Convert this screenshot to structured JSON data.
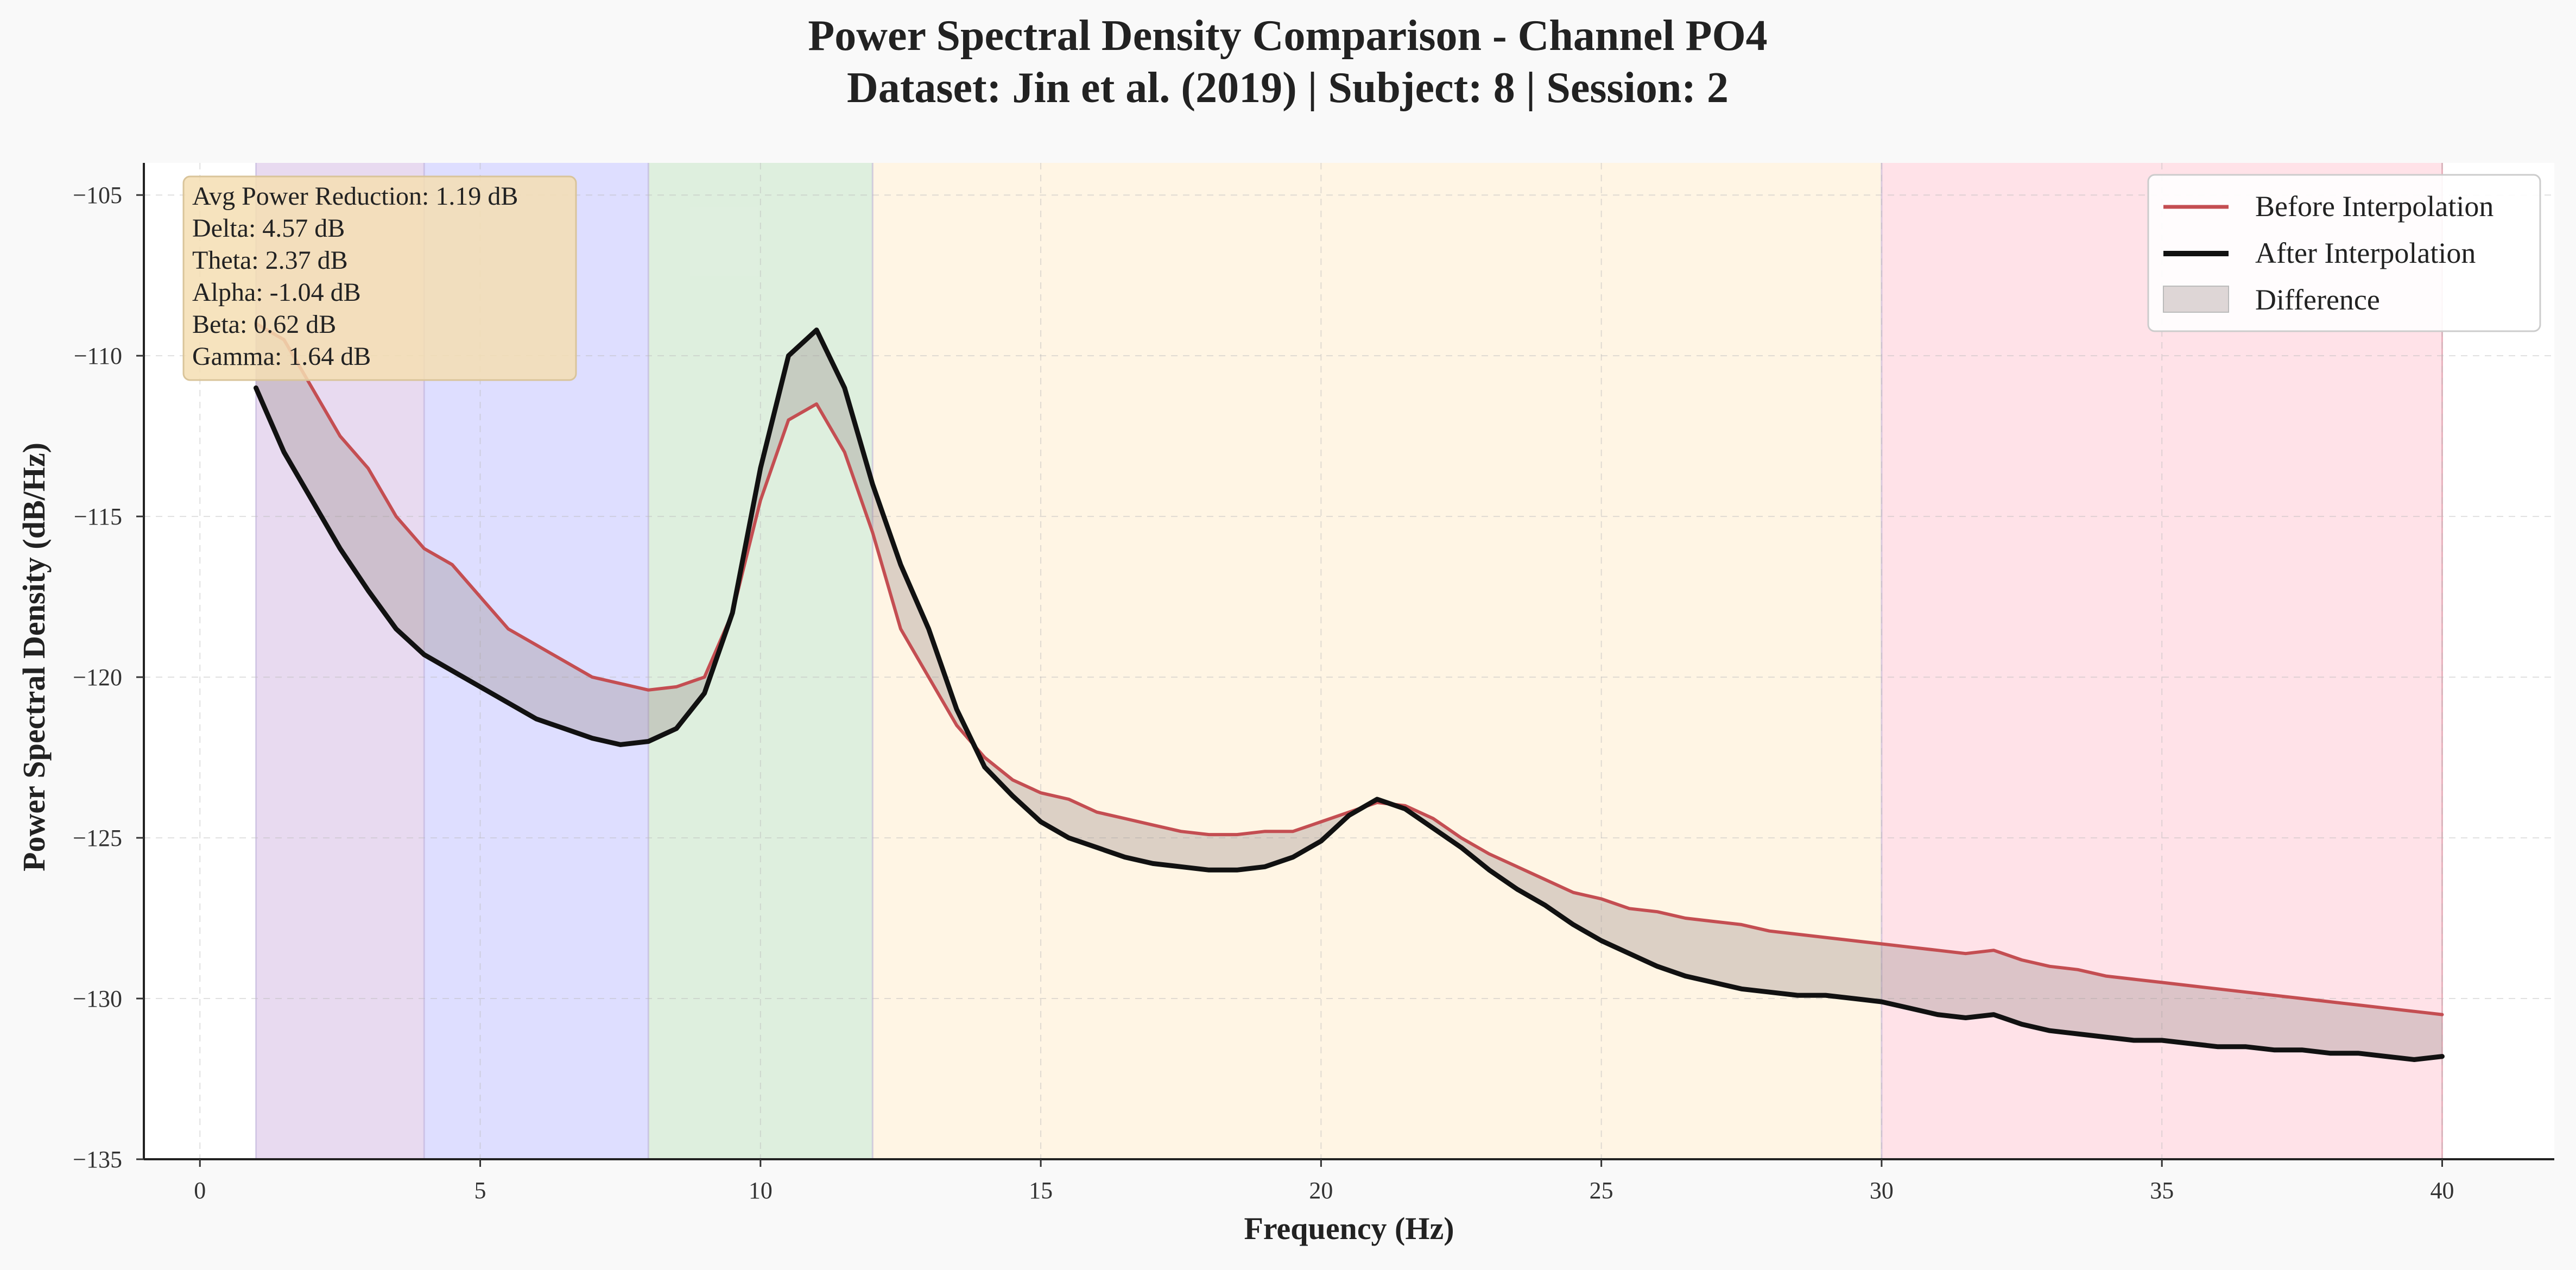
{
  "chart_data": {
    "type": "line",
    "title": "Power Spectral Density Comparison - Channel PO4",
    "subtitle": "Dataset: Jin et al. (2019) | Subject: 8 | Session: 2",
    "xlabel": "Frequency (Hz)",
    "ylabel": "Power Spectral Density (dB/Hz)",
    "xlim": [
      -1,
      42
    ],
    "ylim": [
      -135,
      -104
    ],
    "xticks": [
      "0",
      "5",
      "10",
      "15",
      "20",
      "25",
      "30",
      "35",
      "40"
    ],
    "yticks": [
      "−105",
      "−110",
      "−115",
      "−120",
      "−125",
      "−130",
      "−135"
    ],
    "grid": true,
    "legend_position": "top-right",
    "legend": [
      "Before Interpolation",
      "After Interpolation",
      "Difference"
    ],
    "bands": [
      {
        "name": "Delta",
        "range": [
          1,
          4
        ],
        "color": "#dcc6e8"
      },
      {
        "name": "Theta",
        "range": [
          4,
          8
        ],
        "color": "#ccccff"
      },
      {
        "name": "Alpha",
        "range": [
          8,
          12
        ],
        "color": "#cde6cd"
      },
      {
        "name": "Beta",
        "range": [
          12,
          30
        ],
        "color": "#ffefd5"
      },
      {
        "name": "Gamma",
        "range": [
          30,
          40
        ],
        "color": "#ffd3db"
      }
    ],
    "stats": [
      "Avg Power Reduction: 1.19 dB",
      "Delta: 4.57 dB",
      "Theta: 2.37 dB",
      "Alpha: -1.04 dB",
      "Beta: 0.62 dB",
      "Gamma: 1.64 dB"
    ],
    "series": [
      {
        "name": "Before Interpolation",
        "color": "#c44e52",
        "x": [
          1,
          1.5,
          2,
          2.5,
          3,
          3.5,
          4,
          4.5,
          5,
          5.5,
          6,
          6.5,
          7,
          7.5,
          8,
          8.5,
          9,
          9.5,
          10,
          10.5,
          11,
          11.5,
          12,
          12.5,
          13,
          13.5,
          14,
          14.5,
          15,
          15.5,
          16,
          16.5,
          17,
          17.5,
          18,
          18.5,
          19,
          19.5,
          20,
          20.5,
          21,
          21.5,
          22,
          22.5,
          23,
          23.5,
          24,
          24.5,
          25,
          25.5,
          26,
          26.5,
          27,
          27.5,
          28,
          28.5,
          29,
          29.5,
          30,
          30.5,
          31,
          31.5,
          32,
          32.5,
          33,
          33.5,
          34,
          34.5,
          35,
          35.5,
          36,
          36.5,
          37,
          37.5,
          38,
          38.5,
          39,
          39.5,
          40
        ],
        "y": [
          -109,
          -109.5,
          -111,
          -112.5,
          -113.5,
          -115,
          -116,
          -116.5,
          -117.5,
          -118.5,
          -119,
          -119.5,
          -120,
          -120.2,
          -120.4,
          -120.3,
          -120,
          -118,
          -114.5,
          -112,
          -111.5,
          -113,
          -115.5,
          -118.5,
          -120,
          -121.5,
          -122.5,
          -123.2,
          -123.6,
          -123.8,
          -124.2,
          -124.4,
          -124.6,
          -124.8,
          -124.9,
          -124.9,
          -124.8,
          -124.8,
          -124.5,
          -124.2,
          -123.9,
          -124,
          -124.4,
          -125,
          -125.5,
          -125.9,
          -126.3,
          -126.7,
          -126.9,
          -127.2,
          -127.3,
          -127.5,
          -127.6,
          -127.7,
          -127.9,
          -128,
          -128.1,
          -128.2,
          -128.3,
          -128.4,
          -128.5,
          -128.6,
          -128.5,
          -128.8,
          -129,
          -129.1,
          -129.3,
          -129.4,
          -129.5,
          -129.6,
          -129.7,
          -129.8,
          -129.9,
          -130,
          -130.1,
          -130.2,
          -130.3,
          -130.4,
          -130.5
        ]
      },
      {
        "name": "After Interpolation",
        "color": "#111111",
        "x": [
          1,
          1.5,
          2,
          2.5,
          3,
          3.5,
          4,
          4.5,
          5,
          5.5,
          6,
          6.5,
          7,
          7.5,
          8,
          8.5,
          9,
          9.5,
          10,
          10.5,
          11,
          11.5,
          12,
          12.5,
          13,
          13.5,
          14,
          14.5,
          15,
          15.5,
          16,
          16.5,
          17,
          17.5,
          18,
          18.5,
          19,
          19.5,
          20,
          20.5,
          21,
          21.5,
          22,
          22.5,
          23,
          23.5,
          24,
          24.5,
          25,
          25.5,
          26,
          26.5,
          27,
          27.5,
          28,
          28.5,
          29,
          29.5,
          30,
          30.5,
          31,
          31.5,
          32,
          32.5,
          33,
          33.5,
          34,
          34.5,
          35,
          35.5,
          36,
          36.5,
          37,
          37.5,
          38,
          38.5,
          39,
          39.5,
          40
        ],
        "y": [
          -111,
          -113,
          -114.5,
          -116,
          -117.3,
          -118.5,
          -119.3,
          -119.8,
          -120.3,
          -120.8,
          -121.3,
          -121.6,
          -121.9,
          -122.1,
          -122,
          -121.6,
          -120.5,
          -118,
          -113.5,
          -110,
          -109.2,
          -111,
          -114,
          -116.5,
          -118.5,
          -121,
          -122.8,
          -123.7,
          -124.5,
          -125,
          -125.3,
          -125.6,
          -125.8,
          -125.9,
          -126,
          -126,
          -125.9,
          -125.6,
          -125.1,
          -124.3,
          -123.8,
          -124.1,
          -124.7,
          -125.3,
          -126,
          -126.6,
          -127.1,
          -127.7,
          -128.2,
          -128.6,
          -129,
          -129.3,
          -129.5,
          -129.7,
          -129.8,
          -129.9,
          -129.9,
          -130,
          -130.1,
          -130.3,
          -130.5,
          -130.6,
          -130.5,
          -130.8,
          -131,
          -131.1,
          -131.2,
          -131.3,
          -131.3,
          -131.4,
          -131.5,
          -131.5,
          -131.6,
          -131.6,
          -131.7,
          -131.7,
          -131.8,
          -131.9,
          -131.8
        ]
      }
    ]
  }
}
